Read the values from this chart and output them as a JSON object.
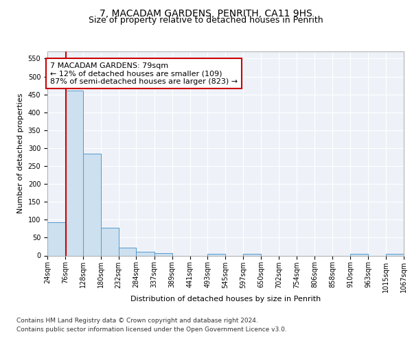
{
  "title1": "7, MACADAM GARDENS, PENRITH, CA11 9HS",
  "title2": "Size of property relative to detached houses in Penrith",
  "xlabel": "Distribution of detached houses by size in Penrith",
  "ylabel": "Number of detached properties",
  "bin_edges": [
    24,
    76,
    128,
    180,
    232,
    284,
    337,
    389,
    441,
    493,
    545,
    597,
    650,
    702,
    754,
    806,
    858,
    910,
    963,
    1015,
    1067
  ],
  "bar_heights": [
    93,
    460,
    285,
    77,
    22,
    10,
    6,
    0,
    0,
    5,
    0,
    5,
    0,
    0,
    0,
    0,
    0,
    5,
    0,
    5
  ],
  "bar_color": "#cce0f0",
  "bar_edge_color": "#5599cc",
  "property_size": 79,
  "red_line_color": "#cc0000",
  "annotation_line1": "7 MACADAM GARDENS: 79sqm",
  "annotation_line2": "← 12% of detached houses are smaller (109)",
  "annotation_line3": "87% of semi-detached houses are larger (823) →",
  "annotation_box_color": "#ffffff",
  "annotation_border_color": "#cc0000",
  "ylim": [
    0,
    570
  ],
  "yticks": [
    0,
    50,
    100,
    150,
    200,
    250,
    300,
    350,
    400,
    450,
    500,
    550
  ],
  "footer_line1": "Contains HM Land Registry data © Crown copyright and database right 2024.",
  "footer_line2": "Contains public sector information licensed under the Open Government Licence v3.0.",
  "background_color": "#eef2f8",
  "grid_color": "#ffffff",
  "title1_fontsize": 10,
  "title2_fontsize": 9,
  "axis_label_fontsize": 8,
  "tick_fontsize": 7,
  "annotation_fontsize": 8,
  "footer_fontsize": 6.5
}
